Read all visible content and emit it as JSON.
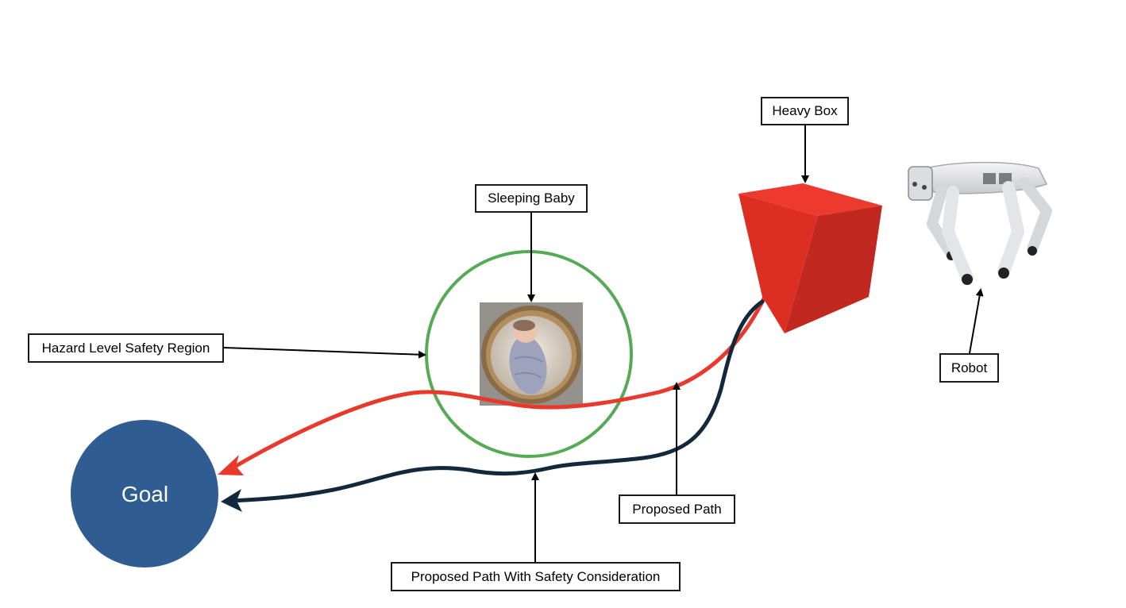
{
  "labels": {
    "heavy_box": "Heavy Box",
    "sleeping_baby": "Sleeping Baby",
    "hazard_region": "Hazard Level Safety Region",
    "robot": "Robot",
    "proposed_path": "Proposed Path",
    "safe_path": "Proposed Path With Safety Consideration"
  },
  "goal": {
    "label": "Goal"
  },
  "colors": {
    "goal_fill": "#2f5d92",
    "unsafe_path": "#e8392c",
    "safe_path": "#13283a",
    "safety_region": "#55aa55",
    "box_front": "#dd2e24",
    "box_top": "#ee3a2e",
    "box_side": "#c02820"
  },
  "icons": {
    "baby": "sleeping-baby-photo",
    "robot": "quadruped-robot-dog",
    "box": "red-cube"
  }
}
